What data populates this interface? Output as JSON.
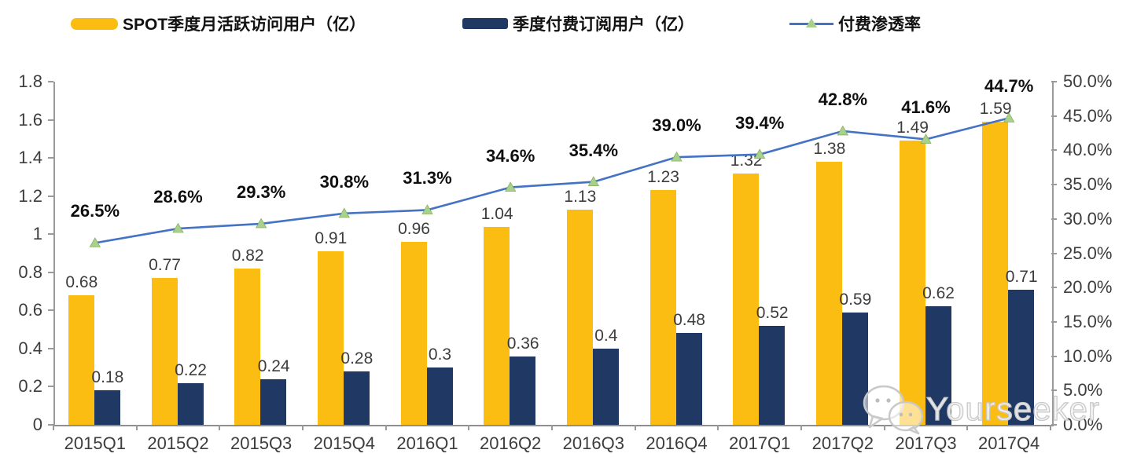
{
  "legend": {
    "items": [
      {
        "label": "SPOT季度月活跃访问用户（亿）",
        "swatch": "yellow-bar-swatch",
        "color": "#FCBD13"
      },
      {
        "label": "季度付费订阅用户（亿）",
        "swatch": "navy-bar-swatch",
        "color": "#1F3864"
      },
      {
        "label": "付费渗透率",
        "swatch": "line-marker-swatch",
        "color": "#4472C4",
        "marker_color": "#A9D18E"
      }
    ]
  },
  "chart_data": {
    "type": "bar",
    "subtype": "grouped-bars-with-line",
    "categories": [
      "2015Q1",
      "2015Q2",
      "2015Q3",
      "2015Q4",
      "2016Q1",
      "2016Q2",
      "2016Q3",
      "2016Q4",
      "2017Q1",
      "2017Q2",
      "2017Q3",
      "2017Q4"
    ],
    "series": [
      {
        "name": "SPOT季度月活跃访问用户（亿）",
        "type": "bar",
        "axis": "left",
        "color": "#FCBD13",
        "values": [
          0.68,
          0.77,
          0.82,
          0.91,
          0.96,
          1.04,
          1.13,
          1.23,
          1.32,
          1.38,
          1.49,
          1.59
        ],
        "labels": [
          "0.68",
          "0.77",
          "0.82",
          "0.91",
          "0.96",
          "1.04",
          "1.13",
          "1.23",
          "1.32",
          "1.38",
          "1.49",
          "1.59"
        ]
      },
      {
        "name": "季度付费订阅用户（亿）",
        "type": "bar",
        "axis": "left",
        "color": "#1F3864",
        "values": [
          0.18,
          0.22,
          0.24,
          0.28,
          0.3,
          0.36,
          0.4,
          0.48,
          0.52,
          0.59,
          0.62,
          0.71
        ],
        "labels": [
          "0.18",
          "0.22",
          "0.24",
          "0.28",
          "0.3",
          "0.36",
          "0.4",
          "0.48",
          "0.52",
          "0.59",
          "0.62",
          "0.71"
        ]
      },
      {
        "name": "付费渗透率",
        "type": "line",
        "axis": "right",
        "color": "#4472C4",
        "marker": "triangle",
        "marker_color": "#A9D18E",
        "values": [
          26.5,
          28.6,
          29.3,
          30.8,
          31.3,
          34.6,
          35.4,
          39.0,
          39.4,
          42.8,
          41.6,
          44.7
        ],
        "labels": [
          "26.5%",
          "28.6%",
          "29.3%",
          "30.8%",
          "31.3%",
          "34.6%",
          "35.4%",
          "39.0%",
          "39.4%",
          "42.8%",
          "41.6%",
          "44.7%"
        ]
      }
    ],
    "left_axis": {
      "min": 0,
      "max": 1.8,
      "ticks": [
        "0",
        "0.2",
        "0.4",
        "0.6",
        "0.8",
        "1",
        "1.2",
        "1.4",
        "1.6",
        "1.8"
      ]
    },
    "right_axis": {
      "min": 0,
      "max": 50,
      "ticks": [
        "0.0%",
        "5.0%",
        "10.0%",
        "15.0%",
        "20.0%",
        "25.0%",
        "30.0%",
        "35.0%",
        "40.0%",
        "45.0%",
        "50.0%"
      ]
    },
    "grid": false,
    "legend_position": "top",
    "title": ""
  },
  "watermark": {
    "text": "Yourseeker",
    "icon": "wechat-icon"
  }
}
